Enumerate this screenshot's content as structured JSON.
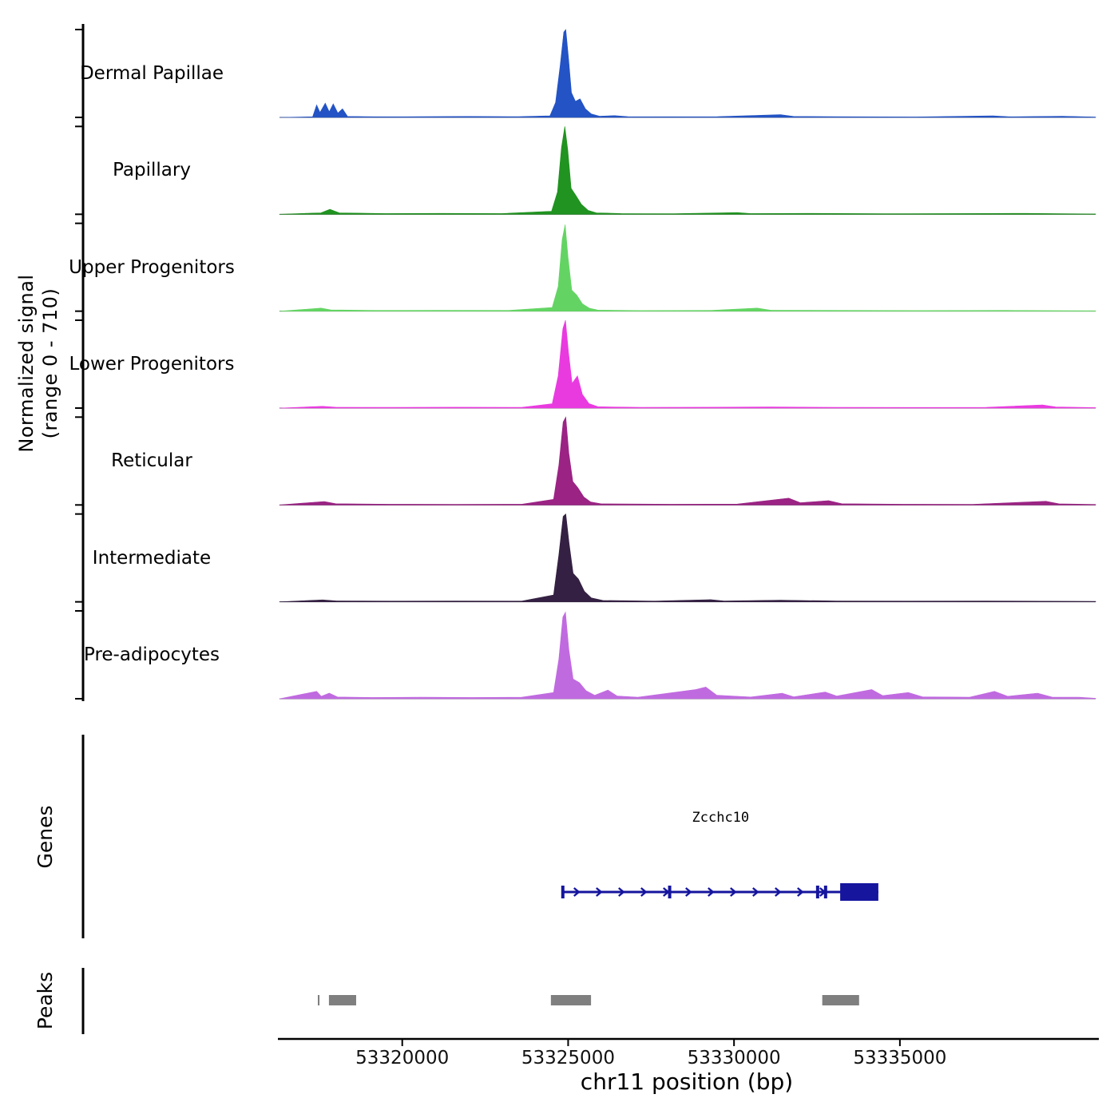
{
  "figure": {
    "y_axis_label_line1": "Normalized signal",
    "y_axis_label_line2": "(range 0 - 710)",
    "x_axis_label": "chr11 position (bp)",
    "genes_section_label": "Genes",
    "peaks_section_label": "Peaks",
    "gene": {
      "name": "Zcchc10",
      "color": "#15159e",
      "start": 53324840,
      "end": 53334350,
      "box_start": 53333200,
      "box_end": 53334350,
      "exon_marks": [
        53324840,
        53328060,
        53332520,
        53332760
      ],
      "strand": "right"
    },
    "peaks": {
      "color": "#7f7f7f",
      "regions": [
        {
          "start": 53317455,
          "end": 53317505
        },
        {
          "start": 53317790,
          "end": 53318610
        },
        {
          "start": 53324480,
          "end": 53325690
        },
        {
          "start": 53332660,
          "end": 53333770
        }
      ]
    }
  },
  "chart_data": {
    "type": "area",
    "title": "",
    "xlabel": "chr11 position (bp)",
    "ylabel": "Normalized signal (range 0 - 710)",
    "x_range": [
      53316300,
      53340900
    ],
    "x_ticks": [
      53320000,
      53325000,
      53330000,
      53335000
    ],
    "ylim": [
      0,
      710
    ],
    "tracks": [
      {
        "name": "Dermal Papillae",
        "color": "#2353c4",
        "profile": [
          [
            53316300,
            0
          ],
          [
            53317300,
            5
          ],
          [
            53317420,
            100
          ],
          [
            53317520,
            40
          ],
          [
            53317680,
            115
          ],
          [
            53317800,
            45
          ],
          [
            53317920,
            110
          ],
          [
            53318060,
            35
          ],
          [
            53318200,
            70
          ],
          [
            53318350,
            8
          ],
          [
            53319200,
            5
          ],
          [
            53320500,
            6
          ],
          [
            53322000,
            8
          ],
          [
            53323500,
            6
          ],
          [
            53324450,
            12
          ],
          [
            53324620,
            120
          ],
          [
            53324760,
            420
          ],
          [
            53324870,
            690
          ],
          [
            53324930,
            710
          ],
          [
            53325010,
            480
          ],
          [
            53325100,
            200
          ],
          [
            53325220,
            130
          ],
          [
            53325360,
            150
          ],
          [
            53325520,
            70
          ],
          [
            53325700,
            28
          ],
          [
            53325950,
            10
          ],
          [
            53326400,
            14
          ],
          [
            53326800,
            6
          ],
          [
            53328000,
            5
          ],
          [
            53329500,
            6
          ],
          [
            53331400,
            22
          ],
          [
            53331800,
            8
          ],
          [
            53333500,
            5
          ],
          [
            53335500,
            4
          ],
          [
            53337800,
            12
          ],
          [
            53338300,
            5
          ],
          [
            53339900,
            10
          ],
          [
            53340900,
            3
          ]
        ]
      },
      {
        "name": "Papillary",
        "color": "#209320",
        "profile": [
          [
            53316300,
            0
          ],
          [
            53317550,
            12
          ],
          [
            53317820,
            40
          ],
          [
            53318100,
            12
          ],
          [
            53319500,
            6
          ],
          [
            53321200,
            7
          ],
          [
            53323000,
            6
          ],
          [
            53324500,
            25
          ],
          [
            53324680,
            180
          ],
          [
            53324800,
            540
          ],
          [
            53324900,
            710
          ],
          [
            53324990,
            520
          ],
          [
            53325090,
            210
          ],
          [
            53325240,
            150
          ],
          [
            53325400,
            80
          ],
          [
            53325600,
            32
          ],
          [
            53325850,
            12
          ],
          [
            53326600,
            6
          ],
          [
            53328200,
            5
          ],
          [
            53330100,
            14
          ],
          [
            53330500,
            6
          ],
          [
            53332200,
            7
          ],
          [
            53334500,
            5
          ],
          [
            53336800,
            6
          ],
          [
            53338800,
            7
          ],
          [
            53340900,
            3
          ]
        ]
      },
      {
        "name": "Upper Progenitors",
        "color": "#63d463",
        "profile": [
          [
            53316300,
            0
          ],
          [
            53317550,
            25
          ],
          [
            53317850,
            10
          ],
          [
            53319200,
            6
          ],
          [
            53321000,
            7
          ],
          [
            53323200,
            6
          ],
          [
            53324520,
            30
          ],
          [
            53324700,
            200
          ],
          [
            53324820,
            580
          ],
          [
            53324910,
            700
          ],
          [
            53325000,
            430
          ],
          [
            53325110,
            170
          ],
          [
            53325260,
            130
          ],
          [
            53325430,
            60
          ],
          [
            53325640,
            24
          ],
          [
            53325900,
            9
          ],
          [
            53327200,
            5
          ],
          [
            53329300,
            6
          ],
          [
            53330700,
            25
          ],
          [
            53331100,
            8
          ],
          [
            53333200,
            6
          ],
          [
            53335800,
            5
          ],
          [
            53338200,
            6
          ],
          [
            53340900,
            3
          ]
        ]
      },
      {
        "name": "Lower Progenitors",
        "color": "#e93ae0",
        "profile": [
          [
            53316300,
            0
          ],
          [
            53317600,
            14
          ],
          [
            53318000,
            7
          ],
          [
            53319600,
            6
          ],
          [
            53321600,
            7
          ],
          [
            53323600,
            6
          ],
          [
            53324520,
            35
          ],
          [
            53324700,
            260
          ],
          [
            53324840,
            640
          ],
          [
            53324920,
            710
          ],
          [
            53325010,
            450
          ],
          [
            53325120,
            200
          ],
          [
            53325280,
            260
          ],
          [
            53325430,
            110
          ],
          [
            53325630,
            36
          ],
          [
            53325900,
            11
          ],
          [
            53327200,
            6
          ],
          [
            53329300,
            7
          ],
          [
            53331100,
            9
          ],
          [
            53333100,
            6
          ],
          [
            53335200,
            5
          ],
          [
            53337600,
            6
          ],
          [
            53339300,
            26
          ],
          [
            53339700,
            9
          ],
          [
            53340900,
            4
          ]
        ]
      },
      {
        "name": "Reticular",
        "color": "#9b2384",
        "profile": [
          [
            53316300,
            0
          ],
          [
            53317650,
            28
          ],
          [
            53318000,
            10
          ],
          [
            53319600,
            6
          ],
          [
            53321600,
            5
          ],
          [
            53323600,
            6
          ],
          [
            53324560,
            45
          ],
          [
            53324720,
            320
          ],
          [
            53324850,
            670
          ],
          [
            53324930,
            710
          ],
          [
            53325020,
            420
          ],
          [
            53325140,
            190
          ],
          [
            53325290,
            140
          ],
          [
            53325470,
            65
          ],
          [
            53325680,
            24
          ],
          [
            53326000,
            9
          ],
          [
            53328100,
            6
          ],
          [
            53330100,
            7
          ],
          [
            53331650,
            55
          ],
          [
            53332000,
            18
          ],
          [
            53332850,
            35
          ],
          [
            53333250,
            10
          ],
          [
            53335100,
            6
          ],
          [
            53337200,
            5
          ],
          [
            53339400,
            30
          ],
          [
            53339800,
            9
          ],
          [
            53340900,
            4
          ]
        ]
      },
      {
        "name": "Intermediate",
        "color": "#342042",
        "profile": [
          [
            53316300,
            0
          ],
          [
            53317600,
            16
          ],
          [
            53318000,
            8
          ],
          [
            53319600,
            6
          ],
          [
            53321600,
            7
          ],
          [
            53323600,
            6
          ],
          [
            53324560,
            55
          ],
          [
            53324720,
            380
          ],
          [
            53324850,
            690
          ],
          [
            53324930,
            710
          ],
          [
            53325030,
            470
          ],
          [
            53325150,
            230
          ],
          [
            53325310,
            185
          ],
          [
            53325490,
            85
          ],
          [
            53325700,
            32
          ],
          [
            53326050,
            11
          ],
          [
            53327600,
            6
          ],
          [
            53329300,
            18
          ],
          [
            53329700,
            7
          ],
          [
            53331400,
            14
          ],
          [
            53333100,
            7
          ],
          [
            53335100,
            6
          ],
          [
            53337600,
            7
          ],
          [
            53340900,
            4
          ]
        ]
      },
      {
        "name": "Pre-adipocytes",
        "color": "#c06ae0",
        "profile": [
          [
            53316300,
            0
          ],
          [
            53317420,
            60
          ],
          [
            53317560,
            20
          ],
          [
            53317800,
            45
          ],
          [
            53318050,
            14
          ],
          [
            53319100,
            10
          ],
          [
            53320600,
            12
          ],
          [
            53322100,
            10
          ],
          [
            53323600,
            12
          ],
          [
            53324560,
            50
          ],
          [
            53324720,
            320
          ],
          [
            53324840,
            660
          ],
          [
            53324920,
            700
          ],
          [
            53325020,
            400
          ],
          [
            53325150,
            160
          ],
          [
            53325340,
            130
          ],
          [
            53325540,
            65
          ],
          [
            53325800,
            28
          ],
          [
            53326200,
            70
          ],
          [
            53326480,
            22
          ],
          [
            53327100,
            12
          ],
          [
            53328850,
            75
          ],
          [
            53329150,
            95
          ],
          [
            53329480,
            28
          ],
          [
            53330500,
            14
          ],
          [
            53331450,
            45
          ],
          [
            53331800,
            16
          ],
          [
            53332750,
            55
          ],
          [
            53333100,
            22
          ],
          [
            53334150,
            75
          ],
          [
            53334480,
            26
          ],
          [
            53335250,
            50
          ],
          [
            53335680,
            16
          ],
          [
            53337100,
            13
          ],
          [
            53337850,
            60
          ],
          [
            53338250,
            20
          ],
          [
            53339150,
            45
          ],
          [
            53339600,
            13
          ],
          [
            53340400,
            12
          ],
          [
            53340900,
            4
          ]
        ]
      }
    ]
  }
}
